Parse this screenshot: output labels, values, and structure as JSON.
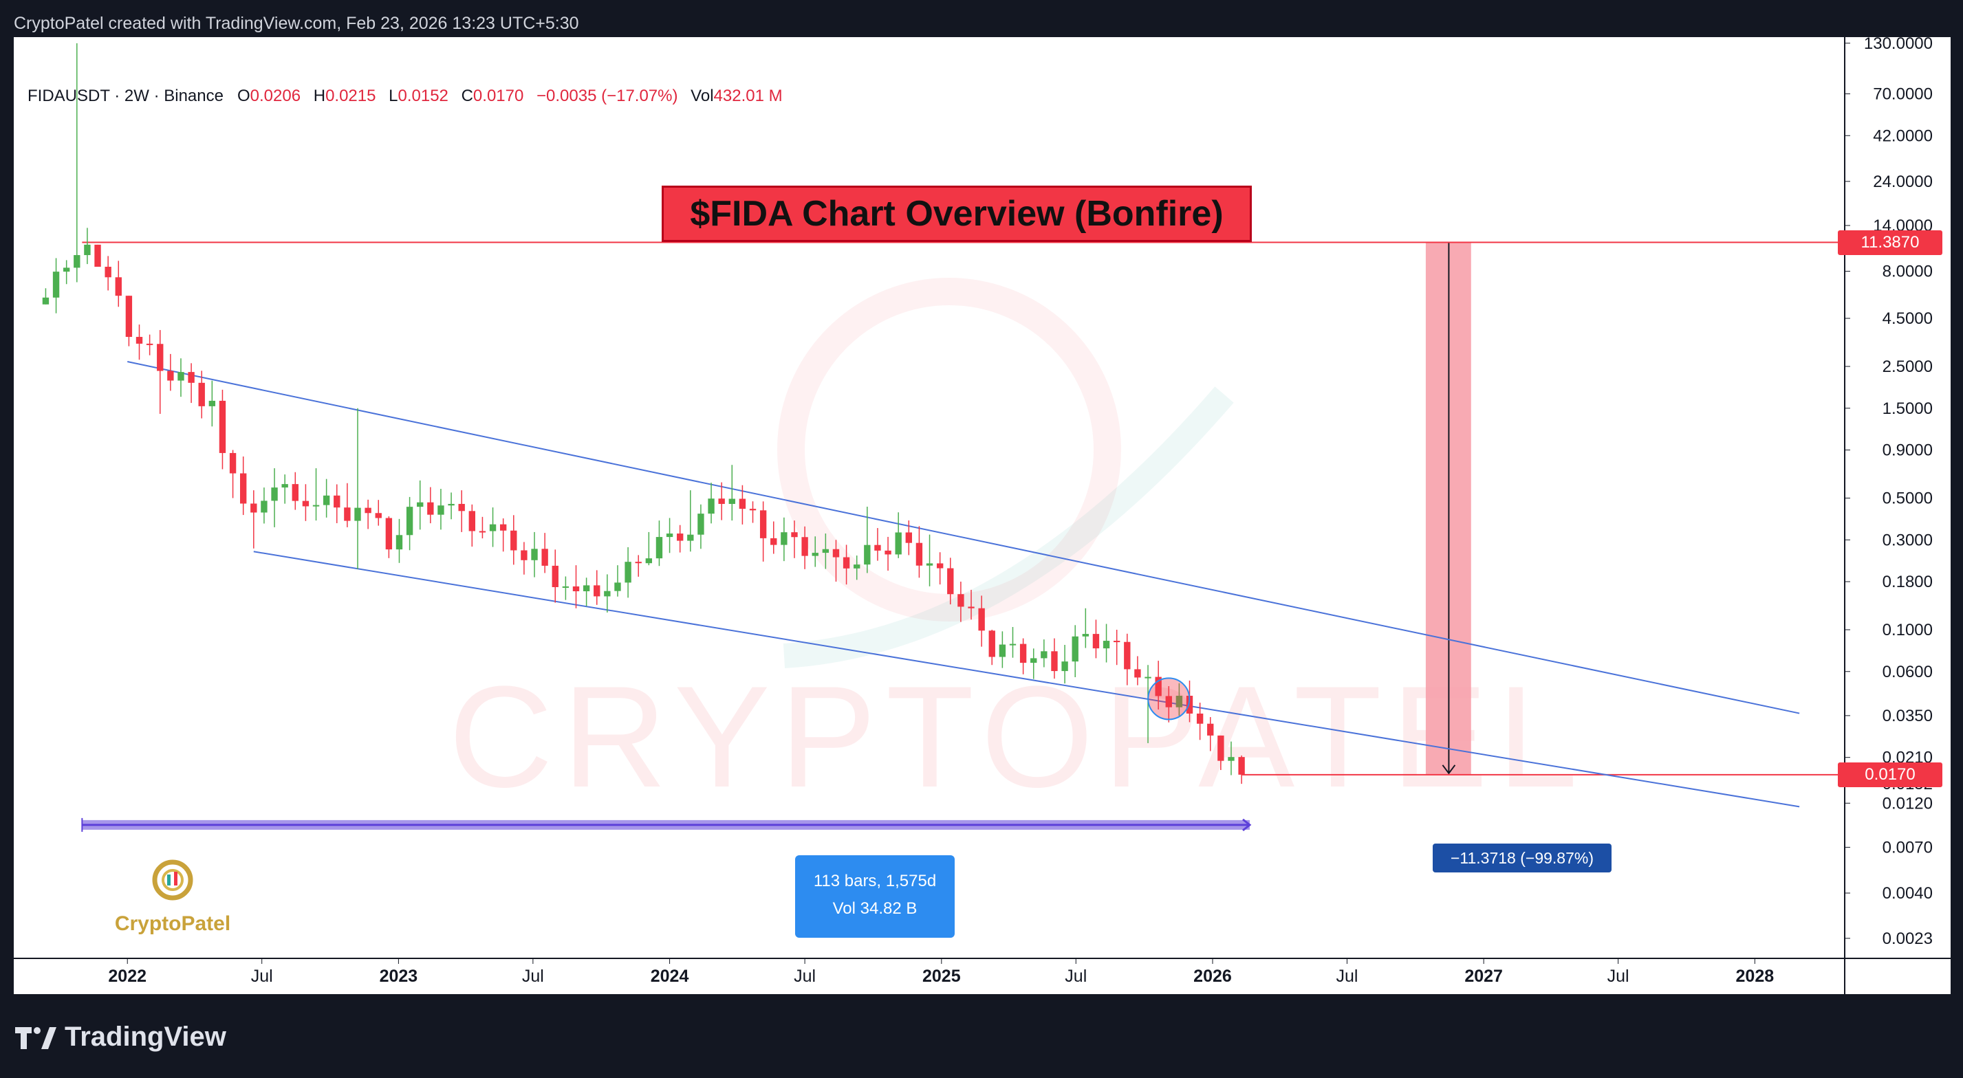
{
  "header": {
    "attribution": "CryptoPatel created with TradingView.com, Feb 23, 2026 13:23 UTC+5:30"
  },
  "legend": {
    "symbol": "FIDAUSDT · 2W · Binance",
    "o_label": "O",
    "o_value": "0.0206",
    "h_label": "H",
    "h_value": "0.0215",
    "l_label": "L",
    "l_value": "0.0152",
    "c_label": "C",
    "c_value": "0.0170",
    "change": "−0.0035 (−17.07%)",
    "vol_label": "Vol",
    "vol_value": "432.01 M"
  },
  "annotations": {
    "title": "$FIDA Chart Overview (Bonfire)",
    "range_line1": "113 bars, 1,575d",
    "range_line2": "Vol 34.82 B",
    "drop_label": "−11.3718 (−99.87%)",
    "resistance_label": "11.3870",
    "current_label": "0.0170",
    "watermark": "CRYPTOPATEL",
    "logo_name": "CryptoPatel"
  },
  "footer": {
    "brand": "TradingView"
  },
  "colors": {
    "up": "#26a69a",
    "up_candle": "#4caf50",
    "down": "#f23645",
    "channel": "#4a72d9",
    "zone": "#f7a1ab",
    "range": "#5c40d9"
  },
  "chart_data": {
    "type": "candlestick",
    "scale": "log",
    "ylim": [
      0.0018,
      140
    ],
    "x_start": "2021-08-01",
    "x_end": "2028-05-01",
    "y_ticks": [
      130,
      70,
      42,
      24,
      14,
      8,
      4.5,
      2.5,
      1.5,
      0.9,
      0.5,
      0.3,
      0.18,
      0.1,
      0.06,
      0.035,
      0.021,
      0.0152,
      0.012,
      0.007,
      0.004,
      0.0023
    ],
    "y_tick_labels": [
      "130.0000",
      "70.0000",
      "42.0000",
      "24.0000",
      "14.0000",
      "8.0000",
      "4.5000",
      "2.5000",
      "1.5000",
      "0.9000",
      "0.5000",
      "0.3000",
      "0.1800",
      "0.1000",
      "0.0600",
      "0.0350",
      "0.0210",
      "0.0152",
      "0.0120",
      "0.0070",
      "0.0040",
      "0.0023"
    ],
    "x_ticks": [
      {
        "label": "2022",
        "date": "2022-01-01",
        "bold": true
      },
      {
        "label": "Jul",
        "date": "2022-07-01",
        "bold": false
      },
      {
        "label": "2023",
        "date": "2023-01-01",
        "bold": true
      },
      {
        "label": "Jul",
        "date": "2023-07-01",
        "bold": false
      },
      {
        "label": "2024",
        "date": "2024-01-01",
        "bold": true
      },
      {
        "label": "Jul",
        "date": "2024-07-01",
        "bold": false
      },
      {
        "label": "2025",
        "date": "2025-01-01",
        "bold": true
      },
      {
        "label": "Jul",
        "date": "2025-07-01",
        "bold": false
      },
      {
        "label": "2026",
        "date": "2026-01-01",
        "bold": true
      },
      {
        "label": "Jul",
        "date": "2026-07-01",
        "bold": false
      },
      {
        "label": "2027",
        "date": "2027-01-01",
        "bold": true
      },
      {
        "label": "Jul",
        "date": "2027-07-01",
        "bold": false
      },
      {
        "label": "2028",
        "date": "2028-01-01",
        "bold": true
      }
    ],
    "candle_anchors": [
      {
        "date": "2021-09-13",
        "close": 5.8,
        "high": 6.5,
        "low": 5.6
      },
      {
        "date": "2021-10-25",
        "close": 10.5,
        "high": 130,
        "low": 7.0
      },
      {
        "date": "2021-11-22",
        "close": 9.5,
        "high": 11.0,
        "low": 8.8
      },
      {
        "date": "2022-01-03",
        "close": 4.0,
        "high": 5.5,
        "low": 3.2
      },
      {
        "date": "2022-02-14",
        "close": 2.5,
        "high": 3.9,
        "low": 1.4
      },
      {
        "date": "2022-03-28",
        "close": 2.0,
        "high": 2.6,
        "low": 1.6
      },
      {
        "date": "2022-04-25",
        "close": 1.5,
        "high": 2.1,
        "low": 1.2
      },
      {
        "date": "2022-05-23",
        "close": 0.6,
        "high": 0.9,
        "low": 0.5
      },
      {
        "date": "2022-06-20",
        "close": 0.38,
        "high": 0.55,
        "low": 0.27
      },
      {
        "date": "2022-07-18",
        "close": 0.55,
        "high": 0.72,
        "low": 0.35
      },
      {
        "date": "2022-09-12",
        "close": 0.48,
        "high": 0.72,
        "low": 0.38
      },
      {
        "date": "2022-10-24",
        "close": 0.42,
        "high": 0.6,
        "low": 0.35
      },
      {
        "date": "2022-11-07",
        "close": 0.5,
        "high": 1.5,
        "low": 0.21
      },
      {
        "date": "2022-12-19",
        "close": 0.29,
        "high": 0.4,
        "low": 0.24
      },
      {
        "date": "2023-01-30",
        "close": 0.48,
        "high": 0.62,
        "low": 0.34
      },
      {
        "date": "2023-03-27",
        "close": 0.4,
        "high": 0.55,
        "low": 0.33
      },
      {
        "date": "2023-05-22",
        "close": 0.3,
        "high": 0.39,
        "low": 0.26
      },
      {
        "date": "2023-07-03",
        "close": 0.24,
        "high": 0.33,
        "low": 0.19
      },
      {
        "date": "2023-08-28",
        "close": 0.15,
        "high": 0.22,
        "low": 0.13
      },
      {
        "date": "2023-10-23",
        "close": 0.18,
        "high": 0.22,
        "low": 0.15
      },
      {
        "date": "2023-12-04",
        "close": 0.26,
        "high": 0.33,
        "low": 0.22
      },
      {
        "date": "2024-01-29",
        "close": 0.36,
        "high": 0.55,
        "low": 0.26
      },
      {
        "date": "2024-03-25",
        "close": 0.55,
        "high": 0.75,
        "low": 0.38
      },
      {
        "date": "2024-05-06",
        "close": 0.32,
        "high": 0.48,
        "low": 0.23
      },
      {
        "date": "2024-06-17",
        "close": 0.3,
        "high": 0.38,
        "low": 0.24
      },
      {
        "date": "2024-08-12",
        "close": 0.22,
        "high": 0.3,
        "low": 0.18
      },
      {
        "date": "2024-09-23",
        "close": 0.25,
        "high": 0.45,
        "low": 0.2
      },
      {
        "date": "2024-11-04",
        "close": 0.3,
        "high": 0.42,
        "low": 0.24
      },
      {
        "date": "2024-12-16",
        "close": 0.22,
        "high": 0.32,
        "low": 0.17
      },
      {
        "date": "2025-01-27",
        "close": 0.14,
        "high": 0.18,
        "low": 0.11
      },
      {
        "date": "2025-03-10",
        "close": 0.08,
        "high": 0.1,
        "low": 0.065
      },
      {
        "date": "2025-04-21",
        "close": 0.075,
        "high": 0.09,
        "low": 0.058
      },
      {
        "date": "2025-06-02",
        "close": 0.065,
        "high": 0.09,
        "low": 0.055
      },
      {
        "date": "2025-07-14",
        "close": 0.095,
        "high": 0.13,
        "low": 0.08
      },
      {
        "date": "2025-08-25",
        "close": 0.08,
        "high": 0.1,
        "low": 0.065
      },
      {
        "date": "2025-10-06",
        "close": 0.05,
        "high": 0.065,
        "low": 0.025
      },
      {
        "date": "2025-11-17",
        "close": 0.04,
        "high": 0.052,
        "low": 0.035
      },
      {
        "date": "2025-12-15",
        "close": 0.03,
        "high": 0.041,
        "low": 0.026
      },
      {
        "date": "2026-01-12",
        "close": 0.0206,
        "high": 0.023,
        "low": 0.018
      },
      {
        "date": "2026-02-09",
        "close": 0.017,
        "high": 0.0215,
        "low": 0.0152
      }
    ],
    "channel_upper": [
      {
        "date": "2022-01-01",
        "price": 2.65
      },
      {
        "date": "2028-03-01",
        "price": 0.036
      }
    ],
    "channel_lower": [
      {
        "date": "2022-06-20",
        "price": 0.26
      },
      {
        "date": "2028-03-01",
        "price": 0.0115
      }
    ],
    "resistance": {
      "price": 11.387,
      "from": "2021-11-01"
    },
    "current_line": {
      "price": 0.017,
      "from": "2026-02-09"
    },
    "drop_zone": {
      "from": "2026-10-15",
      "to": "2026-12-15",
      "top": 11.387,
      "bottom": 0.017,
      "arrow_date": "2026-11-15"
    },
    "date_range": {
      "from": "2021-11-01",
      "to": "2026-02-20",
      "price": 0.0092
    },
    "breakdown_marker": {
      "date": "2025-11-03",
      "price": 0.043
    }
  }
}
